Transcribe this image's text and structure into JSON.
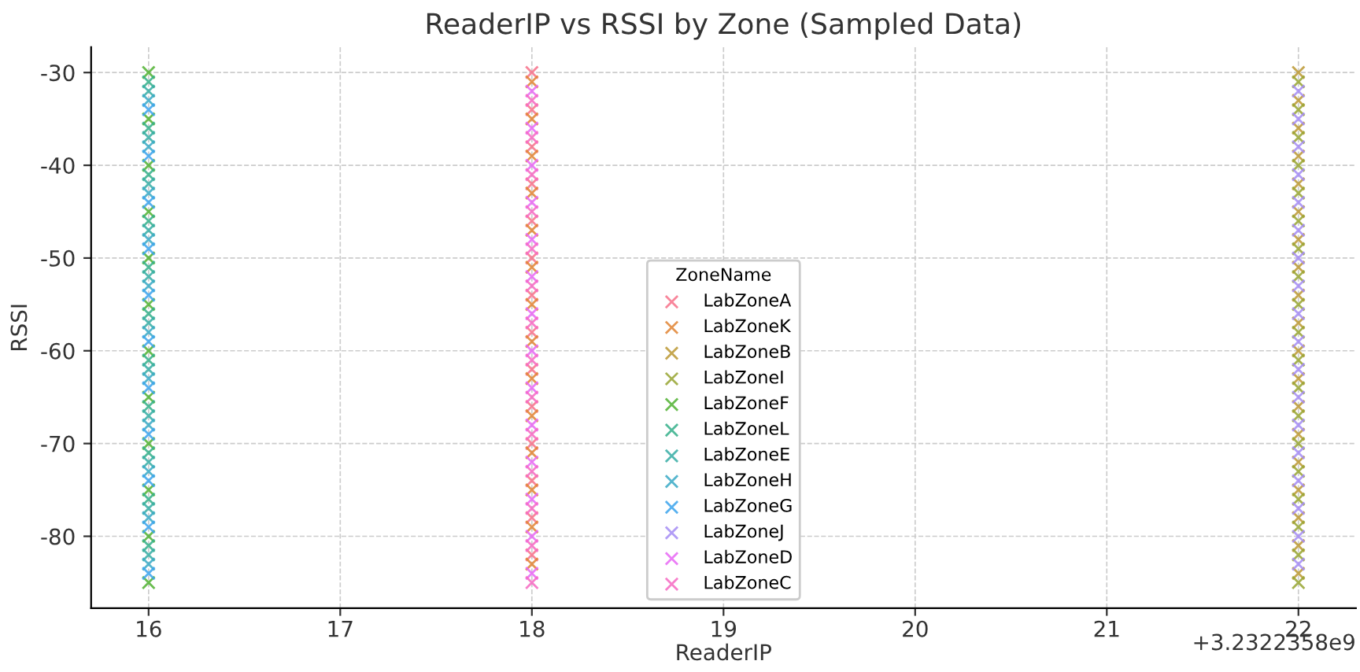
{
  "chart_data": {
    "type": "scatter",
    "title": "ReaderIP vs RSSI by Zone (Sampled Data)",
    "xlabel": "ReaderIP",
    "ylabel": "RSSI",
    "legend_title": "ZoneName",
    "xlim": [
      15.7,
      22.3
    ],
    "xticks": [
      16,
      17,
      18,
      19,
      20,
      21,
      22
    ],
    "ylim": [
      -87.75,
      -27.25
    ],
    "yticks": [
      -30,
      -40,
      -50,
      -60,
      -70,
      -80
    ],
    "annotations": [
      "+3.2322358e9"
    ],
    "grid": true,
    "legend": "bottom",
    "marker": "cross",
    "series": [
      {
        "name": "LabZoneA",
        "color": "#f77189",
        "x": [
          18,
          18,
          18,
          18,
          18,
          18,
          18,
          18,
          18,
          18,
          18,
          18,
          18,
          18
        ],
        "values": [
          -30,
          -34,
          -38,
          -42,
          -46,
          -50,
          -54,
          -58,
          -62,
          -66,
          -70,
          -74,
          -78,
          -82
        ]
      },
      {
        "name": "LabZoneK",
        "color": "#e18432",
        "x": [
          18,
          18,
          18,
          18,
          18,
          18,
          18,
          18,
          18,
          18,
          18,
          18,
          18,
          18
        ],
        "values": [
          -31,
          -35,
          -39,
          -43,
          -47,
          -51,
          -55,
          -59,
          -63,
          -67,
          -71,
          -75,
          -79,
          -83
        ]
      },
      {
        "name": "LabZoneB",
        "color": "#bb9832",
        "x": [
          22,
          22,
          22,
          22,
          22,
          22,
          22,
          22,
          22,
          22,
          22,
          22,
          22,
          22,
          22,
          22,
          22,
          22,
          22
        ],
        "values": [
          -30,
          -33,
          -36,
          -39,
          -42,
          -45,
          -48,
          -51,
          -54,
          -57,
          -60,
          -63,
          -66,
          -69,
          -72,
          -75,
          -78,
          -81,
          -84
        ]
      },
      {
        "name": "LabZoneI",
        "color": "#97a431",
        "x": [
          22,
          22,
          22,
          22,
          22,
          22,
          22,
          22,
          22,
          22,
          22,
          22,
          22,
          22,
          22,
          22,
          22,
          22,
          22
        ],
        "values": [
          -31,
          -34,
          -37,
          -40,
          -43,
          -46,
          -49,
          -52,
          -55,
          -58,
          -61,
          -64,
          -67,
          -70,
          -73,
          -76,
          -79,
          -82,
          -85
        ]
      },
      {
        "name": "LabZoneF",
        "color": "#50b131",
        "x": [
          16,
          16,
          16,
          16,
          16,
          16,
          16,
          16,
          16,
          16,
          16,
          16
        ],
        "values": [
          -30,
          -35,
          -40,
          -45,
          -50,
          -55,
          -60,
          -65,
          -70,
          -75,
          -80,
          -85
        ]
      },
      {
        "name": "LabZoneL",
        "color": "#34af8a",
        "x": [
          16,
          16,
          16,
          16,
          16,
          16,
          16,
          16,
          16,
          16,
          16
        ],
        "values": [
          -31,
          -36,
          -41,
          -46,
          -51,
          -56,
          -61,
          -66,
          -71,
          -76,
          -81
        ]
      },
      {
        "name": "LabZoneE",
        "color": "#36ada4",
        "x": [
          16,
          16,
          16,
          16,
          16,
          16,
          16,
          16,
          16,
          16,
          16
        ],
        "values": [
          -32,
          -37,
          -42,
          -47,
          -52,
          -57,
          -62,
          -67,
          -72,
          -77,
          -82
        ]
      },
      {
        "name": "LabZoneH",
        "color": "#38a9c5",
        "x": [
          16,
          16,
          16,
          16,
          16,
          16,
          16,
          16,
          16,
          16,
          16
        ],
        "values": [
          -33,
          -38,
          -43,
          -48,
          -53,
          -58,
          -63,
          -68,
          -73,
          -78,
          -83
        ]
      },
      {
        "name": "LabZoneG",
        "color": "#3ba3ec",
        "x": [
          16,
          16,
          16,
          16,
          16,
          16,
          16,
          16,
          16,
          16,
          16
        ],
        "values": [
          -34,
          -39,
          -44,
          -49,
          -54,
          -59,
          -64,
          -69,
          -74,
          -79,
          -84
        ]
      },
      {
        "name": "LabZoneJ",
        "color": "#a48cf4",
        "x": [
          22,
          22,
          22,
          22,
          22,
          22,
          22,
          22,
          22,
          22,
          22,
          22,
          22,
          22,
          22,
          22,
          22,
          22
        ],
        "values": [
          -32,
          -35,
          -38,
          -41,
          -44,
          -47,
          -50,
          -53,
          -56,
          -59,
          -62,
          -65,
          -68,
          -71,
          -74,
          -77,
          -80,
          -83
        ]
      },
      {
        "name": "LabZoneD",
        "color": "#e867f4",
        "x": [
          18,
          18,
          18,
          18,
          18,
          18,
          18,
          18,
          18,
          18,
          18,
          18,
          18,
          18
        ],
        "values": [
          -32,
          -36,
          -40,
          -44,
          -48,
          -52,
          -56,
          -60,
          -64,
          -68,
          -72,
          -76,
          -80,
          -84
        ]
      },
      {
        "name": "LabZoneC",
        "color": "#f668c2",
        "x": [
          18,
          18,
          18,
          18,
          18,
          18,
          18,
          18,
          18,
          18,
          18,
          18,
          18,
          18
        ],
        "values": [
          -33,
          -37,
          -41,
          -45,
          -49,
          -53,
          -57,
          -61,
          -65,
          -69,
          -73,
          -77,
          -81,
          -85
        ]
      }
    ]
  }
}
